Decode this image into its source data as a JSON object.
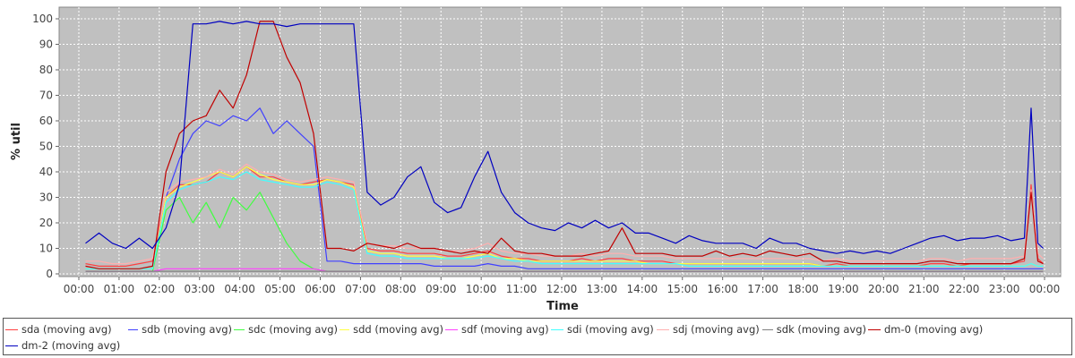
{
  "chart_data": {
    "type": "line",
    "title": "",
    "xlabel": "Time",
    "ylabel": "% util",
    "ylim": [
      0,
      100
    ],
    "xlim": [
      "00:00",
      "24:00"
    ],
    "yticks": [
      "0",
      "10",
      "20",
      "30",
      "40",
      "50",
      "60",
      "70",
      "80",
      "90",
      "100"
    ],
    "xticks": [
      "00:00",
      "01:00",
      "02:00",
      "03:00",
      "04:00",
      "05:00",
      "06:00",
      "07:00",
      "08:00",
      "09:00",
      "10:00",
      "11:00",
      "12:00",
      "13:00",
      "14:00",
      "15:00",
      "16:00",
      "17:00",
      "18:00",
      "19:00",
      "20:00",
      "21:00",
      "22:00",
      "23:00",
      "00:00"
    ],
    "grid": true,
    "legend_position": "bottom",
    "background": "#c0c0c0",
    "x": [
      "00:10",
      "00:30",
      "00:50",
      "01:10",
      "01:30",
      "01:50",
      "02:10",
      "02:30",
      "02:50",
      "03:10",
      "03:30",
      "03:50",
      "04:10",
      "04:30",
      "04:50",
      "05:10",
      "05:30",
      "05:50",
      "06:10",
      "06:30",
      "06:50",
      "07:10",
      "07:30",
      "07:50",
      "08:10",
      "08:30",
      "08:50",
      "09:10",
      "09:30",
      "09:50",
      "10:10",
      "10:30",
      "10:50",
      "11:10",
      "11:30",
      "11:50",
      "12:10",
      "12:30",
      "12:50",
      "13:10",
      "13:30",
      "13:50",
      "14:10",
      "14:30",
      "14:50",
      "15:10",
      "15:30",
      "15:50",
      "16:10",
      "16:30",
      "16:50",
      "17:10",
      "17:30",
      "17:50",
      "18:10",
      "18:30",
      "18:50",
      "19:10",
      "19:30",
      "19:50",
      "20:10",
      "20:30",
      "20:50",
      "21:10",
      "21:30",
      "21:50",
      "22:10",
      "22:30",
      "22:50",
      "23:10",
      "23:30",
      "23:40",
      "23:50",
      "23:58"
    ],
    "series": [
      {
        "name": "sda (moving avg)",
        "color": "#ff4040",
        "values": [
          4,
          3,
          3,
          3,
          4,
          5,
          30,
          35,
          35,
          36,
          40,
          38,
          42,
          38,
          38,
          36,
          35,
          36,
          37,
          36,
          35,
          10,
          9,
          9,
          8,
          8,
          8,
          7,
          7,
          8,
          9,
          7,
          6,
          6,
          5,
          5,
          5,
          6,
          5,
          6,
          6,
          5,
          5,
          5,
          4,
          4,
          4,
          4,
          4,
          4,
          4,
          4,
          4,
          4,
          4,
          3,
          4,
          3,
          3,
          3,
          3,
          3,
          3,
          4,
          4,
          3,
          4,
          4,
          4,
          4,
          5,
          35,
          6,
          4
        ]
      },
      {
        "name": "sdb (moving avg)",
        "color": "#4040ff",
        "values": [
          2,
          2,
          2,
          2,
          2,
          2,
          30,
          45,
          55,
          60,
          58,
          62,
          60,
          65,
          55,
          60,
          55,
          50,
          5,
          5,
          4,
          4,
          4,
          4,
          4,
          4,
          3,
          3,
          3,
          3,
          4,
          3,
          3,
          2,
          2,
          2,
          2,
          2,
          2,
          2,
          2,
          2,
          2,
          2,
          2,
          2,
          2,
          2,
          2,
          2,
          2,
          2,
          2,
          2,
          2,
          2,
          2,
          2,
          2,
          2,
          2,
          2,
          2,
          2,
          2,
          2,
          2,
          2,
          2,
          2,
          2,
          2,
          2,
          2
        ]
      },
      {
        "name": "sdc (moving avg)",
        "color": "#40ff40",
        "values": [
          1,
          1,
          1,
          1,
          1,
          1,
          25,
          30,
          20,
          28,
          18,
          30,
          25,
          32,
          22,
          12,
          5,
          2,
          1,
          1,
          1,
          1,
          1,
          1,
          1,
          1,
          1,
          1,
          1,
          1,
          1,
          1,
          1,
          1,
          1,
          1,
          1,
          1,
          1,
          1,
          1,
          1,
          1,
          1,
          1,
          1,
          1,
          1,
          1,
          1,
          1,
          1,
          1,
          1,
          1,
          1,
          1,
          1,
          1,
          1,
          1,
          1,
          1,
          1,
          1,
          1,
          1,
          1,
          1,
          1,
          1,
          1,
          1,
          1
        ]
      },
      {
        "name": "sdd (moving avg)",
        "color": "#ffff40",
        "values": [
          2,
          2,
          2,
          2,
          2,
          2,
          30,
          34,
          36,
          38,
          40,
          38,
          42,
          39,
          37,
          36,
          35,
          35,
          37,
          36,
          34,
          9,
          8,
          8,
          7,
          7,
          7,
          6,
          6,
          7,
          8,
          6,
          6,
          5,
          5,
          5,
          5,
          5,
          5,
          5,
          5,
          5,
          4,
          4,
          4,
          4,
          4,
          4,
          4,
          4,
          4,
          4,
          4,
          4,
          4,
          3,
          3,
          3,
          3,
          3,
          3,
          3,
          3,
          3,
          3,
          3,
          3,
          3,
          3,
          3,
          3,
          4,
          3,
          3
        ]
      },
      {
        "name": "sdf (moving avg)",
        "color": "#ff40ff",
        "values": [
          1,
          1,
          1,
          1,
          1,
          1,
          2,
          2,
          2,
          2,
          2,
          2,
          2,
          2,
          2,
          2,
          2,
          2,
          1,
          1,
          1,
          1,
          1,
          1,
          1,
          1,
          1,
          1,
          1,
          1,
          1,
          1,
          1,
          1,
          1,
          1,
          1,
          1,
          1,
          1,
          1,
          1,
          1,
          1,
          1,
          1,
          1,
          1,
          1,
          1,
          1,
          1,
          1,
          1,
          1,
          1,
          1,
          1,
          1,
          1,
          1,
          1,
          1,
          1,
          1,
          1,
          1,
          1,
          1,
          1,
          1,
          1,
          1,
          1
        ]
      },
      {
        "name": "sdi (moving avg)",
        "color": "#40ffff",
        "values": [
          2,
          2,
          2,
          2,
          2,
          2,
          28,
          33,
          35,
          36,
          38,
          37,
          40,
          37,
          36,
          35,
          34,
          34,
          36,
          35,
          33,
          8,
          7,
          7,
          6,
          6,
          6,
          6,
          6,
          6,
          7,
          6,
          5,
          5,
          4,
          4,
          4,
          4,
          4,
          4,
          4,
          4,
          4,
          4,
          4,
          3,
          3,
          3,
          3,
          3,
          3,
          3,
          3,
          3,
          3,
          3,
          3,
          3,
          3,
          3,
          3,
          3,
          3,
          3,
          3,
          3,
          3,
          3,
          3,
          3,
          3,
          4,
          3,
          3
        ]
      },
      {
        "name": "sdj (moving avg)",
        "color": "#ffafaf",
        "values": [
          5,
          5,
          4,
          4,
          5,
          6,
          32,
          36,
          37,
          38,
          41,
          39,
          43,
          40,
          39,
          37,
          36,
          37,
          38,
          37,
          36,
          12,
          11,
          11,
          10,
          10,
          10,
          9,
          9,
          10,
          12,
          9,
          8,
          8,
          7,
          7,
          7,
          8,
          7,
          8,
          8,
          7,
          7,
          7,
          6,
          6,
          6,
          6,
          6,
          6,
          6,
          6,
          6,
          6,
          6,
          5,
          6,
          5,
          5,
          5,
          5,
          5,
          5,
          6,
          6,
          5,
          6,
          6,
          6,
          6,
          7,
          33,
          8,
          6
        ]
      },
      {
        "name": "sdk (moving avg)",
        "color": "#808080",
        "values": [
          1,
          1,
          1,
          1,
          1,
          1,
          1,
          1,
          1,
          1,
          1,
          1,
          1,
          1,
          1,
          1,
          1,
          1,
          1,
          1,
          1,
          1,
          1,
          1,
          1,
          1,
          1,
          1,
          1,
          1,
          1,
          1,
          1,
          1,
          1,
          1,
          1,
          1,
          1,
          1,
          1,
          1,
          1,
          1,
          1,
          1,
          1,
          1,
          1,
          1,
          1,
          1,
          1,
          1,
          1,
          1,
          1,
          1,
          1,
          1,
          1,
          1,
          1,
          1,
          1,
          1,
          1,
          1,
          1,
          1,
          1,
          1,
          1,
          1
        ]
      },
      {
        "name": "dm-0 (moving avg)",
        "color": "#c00000",
        "values": [
          3,
          2,
          2,
          2,
          2,
          3,
          40,
          55,
          60,
          62,
          72,
          65,
          78,
          99,
          99,
          85,
          75,
          55,
          10,
          10,
          9,
          12,
          11,
          10,
          12,
          10,
          10,
          9,
          8,
          9,
          8,
          14,
          9,
          8,
          8,
          7,
          7,
          7,
          8,
          9,
          18,
          8,
          8,
          8,
          7,
          7,
          7,
          9,
          7,
          8,
          7,
          9,
          8,
          7,
          8,
          5,
          5,
          4,
          4,
          4,
          4,
          4,
          4,
          5,
          5,
          4,
          4,
          4,
          4,
          4,
          6,
          32,
          5,
          4
        ]
      },
      {
        "name": "dm-2 (moving avg)",
        "color": "#0000c0",
        "values": [
          12,
          16,
          12,
          10,
          14,
          10,
          18,
          35,
          98,
          98,
          99,
          98,
          99,
          98,
          98,
          97,
          98,
          98,
          98,
          98,
          98,
          32,
          27,
          30,
          38,
          42,
          28,
          24,
          26,
          38,
          48,
          32,
          24,
          20,
          18,
          17,
          20,
          18,
          21,
          18,
          20,
          16,
          16,
          14,
          12,
          15,
          13,
          12,
          12,
          12,
          10,
          14,
          12,
          12,
          10,
          9,
          8,
          9,
          8,
          9,
          8,
          10,
          12,
          14,
          15,
          13,
          14,
          14,
          15,
          13,
          14,
          65,
          12,
          10
        ]
      }
    ]
  }
}
